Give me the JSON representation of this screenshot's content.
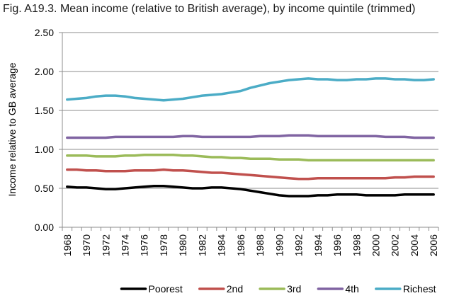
{
  "chart_data": {
    "type": "line",
    "title": "Fig. A19.3. Mean income (relative to British average), by income quintile (trimmed)",
    "xlabel": "",
    "ylabel": "Income relative to GB average",
    "ylim": [
      0,
      2.5
    ],
    "yticks": [
      "0.00",
      "0.50",
      "1.00",
      "1.50",
      "2.00",
      "2.50"
    ],
    "xticks": [
      "1968",
      "1970",
      "1972",
      "1974",
      "1976",
      "1978",
      "1980",
      "1982",
      "1984",
      "1986",
      "1988",
      "1990",
      "1992",
      "1994",
      "1996",
      "1998",
      "2000",
      "2002",
      "2004",
      "2006"
    ],
    "x": [
      1968,
      1969,
      1970,
      1971,
      1972,
      1973,
      1974,
      1975,
      1976,
      1977,
      1978,
      1979,
      1980,
      1981,
      1982,
      1983,
      1984,
      1985,
      1986,
      1987,
      1988,
      1989,
      1990,
      1991,
      1992,
      1993,
      1994,
      1995,
      1996,
      1997,
      1998,
      1999,
      2000,
      2001,
      2002,
      2003,
      2004,
      2005,
      2006
    ],
    "grid": true,
    "legend_position": "bottom",
    "series": [
      {
        "name": "Poorest",
        "color": "#000000",
        "values": [
          0.52,
          0.51,
          0.51,
          0.5,
          0.49,
          0.49,
          0.5,
          0.51,
          0.52,
          0.53,
          0.53,
          0.52,
          0.51,
          0.5,
          0.5,
          0.51,
          0.51,
          0.5,
          0.49,
          0.47,
          0.45,
          0.43,
          0.41,
          0.4,
          0.4,
          0.4,
          0.41,
          0.41,
          0.42,
          0.42,
          0.42,
          0.41,
          0.41,
          0.41,
          0.41,
          0.42,
          0.42,
          0.42,
          0.42
        ]
      },
      {
        "name": "2nd",
        "color": "#c0504d",
        "values": [
          0.74,
          0.74,
          0.73,
          0.73,
          0.72,
          0.72,
          0.72,
          0.73,
          0.73,
          0.73,
          0.74,
          0.73,
          0.73,
          0.72,
          0.71,
          0.7,
          0.7,
          0.69,
          0.68,
          0.67,
          0.66,
          0.65,
          0.64,
          0.63,
          0.62,
          0.62,
          0.63,
          0.63,
          0.63,
          0.63,
          0.63,
          0.63,
          0.63,
          0.63,
          0.64,
          0.64,
          0.65,
          0.65,
          0.65
        ]
      },
      {
        "name": "3rd",
        "color": "#9bbb59",
        "values": [
          0.92,
          0.92,
          0.92,
          0.91,
          0.91,
          0.91,
          0.92,
          0.92,
          0.93,
          0.93,
          0.93,
          0.93,
          0.92,
          0.92,
          0.91,
          0.9,
          0.9,
          0.89,
          0.89,
          0.88,
          0.88,
          0.88,
          0.87,
          0.87,
          0.87,
          0.86,
          0.86,
          0.86,
          0.86,
          0.86,
          0.86,
          0.86,
          0.86,
          0.86,
          0.86,
          0.86,
          0.86,
          0.86,
          0.86
        ]
      },
      {
        "name": "4th",
        "color": "#8064a2",
        "values": [
          1.15,
          1.15,
          1.15,
          1.15,
          1.15,
          1.16,
          1.16,
          1.16,
          1.16,
          1.16,
          1.16,
          1.16,
          1.17,
          1.17,
          1.16,
          1.16,
          1.16,
          1.16,
          1.16,
          1.16,
          1.17,
          1.17,
          1.17,
          1.18,
          1.18,
          1.18,
          1.17,
          1.17,
          1.17,
          1.17,
          1.17,
          1.17,
          1.17,
          1.16,
          1.16,
          1.16,
          1.15,
          1.15,
          1.15
        ]
      },
      {
        "name": "Richest",
        "color": "#4bacc6",
        "values": [
          1.64,
          1.65,
          1.66,
          1.68,
          1.69,
          1.69,
          1.68,
          1.66,
          1.65,
          1.64,
          1.63,
          1.64,
          1.65,
          1.67,
          1.69,
          1.7,
          1.71,
          1.73,
          1.75,
          1.79,
          1.82,
          1.85,
          1.87,
          1.89,
          1.9,
          1.91,
          1.9,
          1.9,
          1.89,
          1.89,
          1.9,
          1.9,
          1.91,
          1.91,
          1.9,
          1.9,
          1.89,
          1.89,
          1.9
        ]
      }
    ]
  }
}
